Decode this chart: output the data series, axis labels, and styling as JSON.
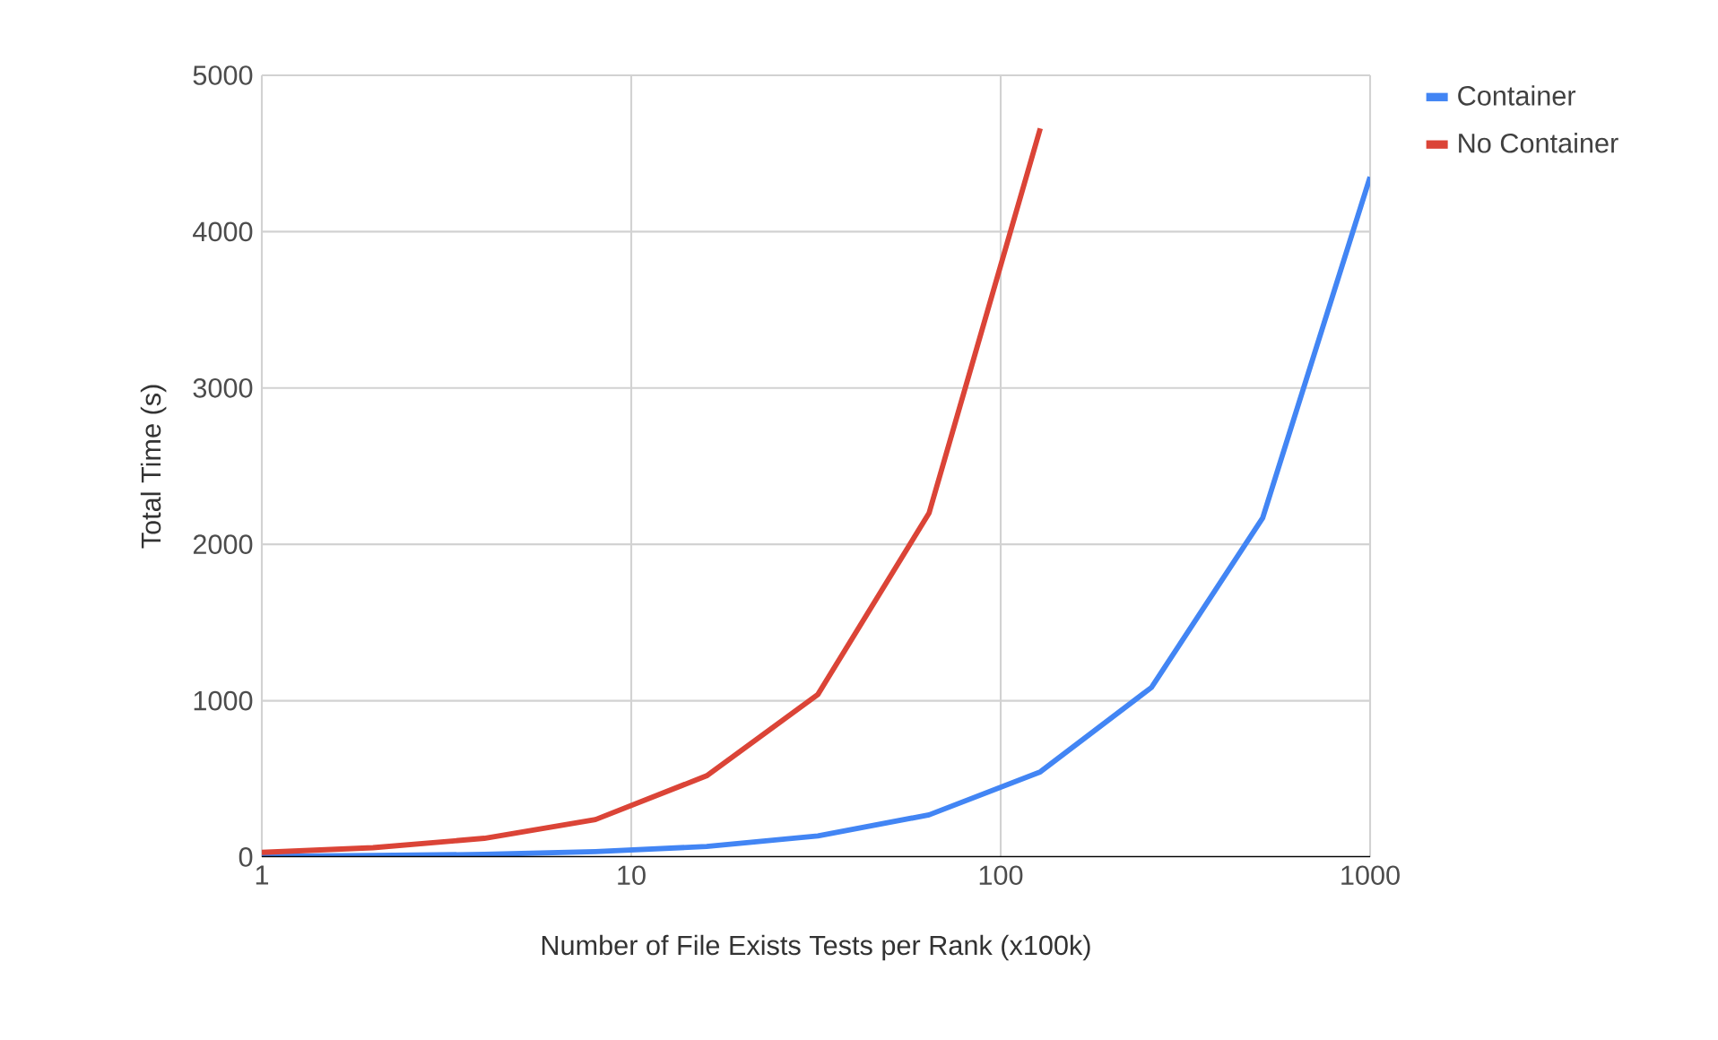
{
  "chart_data": {
    "type": "line",
    "xlabel": "Number of File Exists Tests per Rank (x100k)",
    "ylabel": "Total Time (s)",
    "log": "x",
    "xlim": [
      1,
      1000
    ],
    "xticks": [
      1,
      10,
      100,
      1000
    ],
    "ylim": [
      0,
      5000
    ],
    "yticks": [
      0,
      1000,
      2000,
      3000,
      4000,
      5000
    ],
    "grid": true,
    "legend": "top right",
    "marker": "none",
    "line_style": "solid",
    "series": [
      {
        "name": "Container",
        "color": "#4285f4",
        "x": [
          1,
          2,
          4,
          8,
          16,
          32,
          64,
          128,
          256,
          512,
          1000
        ],
        "values": [
          5,
          10,
          17,
          35,
          68,
          135,
          270,
          545,
          1085,
          2170,
          4350
        ]
      },
      {
        "name": "No Container",
        "color": "#db4437",
        "x": [
          1,
          2,
          4,
          8,
          16,
          32,
          64,
          128
        ],
        "values": [
          30,
          60,
          120,
          240,
          520,
          1040,
          2200,
          4660
        ]
      }
    ]
  }
}
